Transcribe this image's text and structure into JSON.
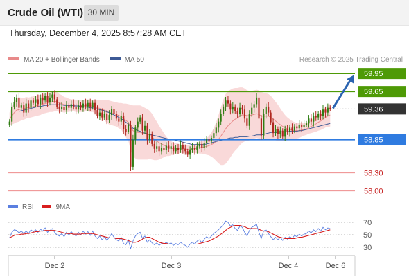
{
  "header": {
    "instrument": "Crude Oil (WTI)",
    "timeframe": "30 MIN",
    "datetime": "Thursday, December 4, 2025 8:57:28 AM CET"
  },
  "legend": {
    "bollinger_label": "MA 20 + Bollinger Bands",
    "ma50_label": "MA 50",
    "credit": "Research © 2025 Trading Central"
  },
  "colors": {
    "up_candle": "#2e7d12",
    "down_candle": "#b0271f",
    "bollinger_band": "#f8cfcf",
    "ma20": "#e88a8a",
    "ma50": "#3d5a96",
    "resistance": "#4e9a06",
    "support": "#2f7be0",
    "support2": "#ee8b8b",
    "last_price": "#333333",
    "rsi": "#5b7fe0",
    "rsi_ma": "#d81e1e",
    "arrow": "#2a63b0"
  },
  "chart_data": [
    {
      "type": "candlestick",
      "y_range": [
        57.95,
        60.02
      ],
      "x_labels": [
        "Dec 2",
        "Dec 3",
        "Dec 4",
        "Dec 6"
      ],
      "levels": [
        {
          "label": "59.95",
          "value": 59.95,
          "kind": "resistance"
        },
        {
          "label": "59.65",
          "value": 59.65,
          "kind": "resistance"
        },
        {
          "label": "59.36",
          "value": 59.36,
          "kind": "last"
        },
        {
          "label": "58.85",
          "value": 58.85,
          "kind": "support"
        },
        {
          "label": "58.30",
          "value": 58.3,
          "kind": "support2"
        },
        {
          "label": "58.00",
          "value": 58.0,
          "kind": "support2"
        }
      ],
      "arrow": {
        "from": 59.36,
        "to": 59.95
      },
      "close": [
        59.15,
        59.4,
        59.48,
        59.55,
        59.38,
        59.42,
        59.3,
        59.45,
        59.38,
        59.5,
        59.46,
        59.52,
        59.44,
        59.55,
        59.5,
        59.58,
        59.47,
        59.55,
        59.6,
        59.52,
        59.4,
        59.36,
        59.4,
        59.34,
        59.42,
        59.38,
        59.44,
        59.4,
        59.35,
        59.43,
        59.38,
        59.45,
        59.4,
        59.46,
        59.39,
        59.46,
        59.34,
        59.25,
        59.3,
        59.22,
        59.28,
        59.18,
        59.26,
        59.36,
        59.28,
        59.2,
        59.15,
        59.25,
        59.02,
        58.98,
        59.1,
        58.4,
        58.85,
        59.05,
        59.15,
        59.22,
        59.0,
        59.08,
        58.85,
        58.95,
        58.78,
        58.7,
        58.74,
        58.66,
        58.72,
        58.68,
        58.75,
        58.7,
        58.74,
        58.66,
        58.72,
        58.68,
        58.76,
        58.7,
        58.66,
        58.6,
        58.68,
        58.72,
        58.68,
        58.74,
        58.78,
        58.72,
        58.8,
        58.86,
        58.82,
        58.88,
        58.96,
        59.05,
        59.15,
        59.28,
        59.4,
        59.5,
        59.45,
        59.35,
        59.4,
        59.32,
        59.28,
        59.38,
        59.35,
        59.2,
        59.08,
        59.28,
        59.38,
        59.44,
        59.55,
        59.2,
        58.92,
        59.28,
        59.4,
        59.3,
        59.14,
        58.96,
        59.02,
        58.94,
        59.0,
        58.9,
        59.02,
        58.98,
        59.05,
        59.0,
        59.07,
        59.04,
        59.1,
        59.06,
        59.1,
        59.12,
        59.2,
        59.15,
        59.25,
        59.22,
        59.28,
        59.24,
        59.35,
        59.3,
        59.38,
        59.36
      ],
      "ma20": [
        59.2,
        59.24,
        59.3,
        59.34,
        59.35,
        59.36,
        59.36,
        59.38,
        59.38,
        59.39,
        59.4,
        59.41,
        59.42,
        59.43,
        59.44,
        59.45,
        59.46,
        59.47,
        59.48,
        59.49,
        59.48,
        59.46,
        59.45,
        59.43,
        59.43,
        59.42,
        59.42,
        59.42,
        59.41,
        59.41,
        59.41,
        59.41,
        59.42,
        59.42,
        59.41,
        59.41,
        59.4,
        59.38,
        59.37,
        59.35,
        59.34,
        59.32,
        59.3,
        59.29,
        59.28,
        59.27,
        59.25,
        59.24,
        59.2,
        59.17,
        59.14,
        59.05,
        59.0,
        58.98,
        58.97,
        58.97,
        58.96,
        58.95,
        58.94,
        58.93,
        58.9,
        58.86,
        58.83,
        58.8,
        58.78,
        58.76,
        58.74,
        58.72,
        58.71,
        58.7,
        58.7,
        58.7,
        58.7,
        58.7,
        58.7,
        58.69,
        58.69,
        58.7,
        58.7,
        58.71,
        58.72,
        58.72,
        58.73,
        58.74,
        58.75,
        58.77,
        58.79,
        58.82,
        58.86,
        58.91,
        58.97,
        59.03,
        59.08,
        59.12,
        59.16,
        59.19,
        59.21,
        59.24,
        59.26,
        59.26,
        59.25,
        59.25,
        59.26,
        59.27,
        59.28,
        59.27,
        59.24,
        59.24,
        59.24,
        59.24,
        59.22,
        59.19,
        59.16,
        59.13,
        59.1,
        59.07,
        59.05,
        59.03,
        59.02,
        59.01,
        59.0,
        59.0,
        59.0,
        59.01,
        59.02,
        59.03,
        59.05,
        59.07,
        59.09,
        59.11,
        59.14,
        59.16,
        59.19,
        59.22,
        59.24,
        59.26
      ],
      "bollinger_halfwidth": [
        0.1,
        0.14,
        0.18,
        0.2,
        0.2,
        0.19,
        0.18,
        0.18,
        0.17,
        0.17,
        0.17,
        0.17,
        0.17,
        0.17,
        0.16,
        0.16,
        0.16,
        0.16,
        0.17,
        0.17,
        0.16,
        0.15,
        0.14,
        0.13,
        0.12,
        0.11,
        0.1,
        0.1,
        0.1,
        0.1,
        0.1,
        0.1,
        0.1,
        0.1,
        0.1,
        0.1,
        0.11,
        0.13,
        0.14,
        0.16,
        0.17,
        0.19,
        0.2,
        0.2,
        0.2,
        0.2,
        0.21,
        0.22,
        0.25,
        0.28,
        0.3,
        0.38,
        0.42,
        0.44,
        0.45,
        0.45,
        0.44,
        0.43,
        0.42,
        0.4,
        0.38,
        0.35,
        0.32,
        0.28,
        0.24,
        0.2,
        0.16,
        0.14,
        0.12,
        0.1,
        0.09,
        0.08,
        0.07,
        0.07,
        0.07,
        0.07,
        0.07,
        0.07,
        0.07,
        0.08,
        0.1,
        0.1,
        0.12,
        0.14,
        0.16,
        0.2,
        0.25,
        0.32,
        0.4,
        0.48,
        0.54,
        0.58,
        0.58,
        0.56,
        0.54,
        0.52,
        0.5,
        0.48,
        0.46,
        0.44,
        0.42,
        0.41,
        0.4,
        0.4,
        0.4,
        0.4,
        0.4,
        0.39,
        0.38,
        0.37,
        0.36,
        0.34,
        0.32,
        0.3,
        0.27,
        0.24,
        0.21,
        0.19,
        0.17,
        0.15,
        0.14,
        0.13,
        0.12,
        0.11,
        0.1,
        0.1,
        0.1,
        0.11,
        0.12,
        0.13,
        0.14,
        0.15,
        0.16,
        0.17,
        0.18,
        0.19
      ],
      "ma50": [
        null,
        null,
        null,
        null,
        59.32,
        59.33,
        59.34,
        59.35,
        59.36,
        59.37,
        59.38,
        59.39,
        59.4,
        59.4,
        59.41,
        59.42,
        59.42,
        59.43,
        59.43,
        59.43,
        59.43,
        59.43,
        59.43,
        59.42,
        59.42,
        59.42,
        59.42,
        59.41,
        59.41,
        59.41,
        59.4,
        59.4,
        59.39,
        59.39,
        59.38,
        59.38,
        59.37,
        59.36,
        59.35,
        59.34,
        59.33,
        59.31,
        59.3,
        59.28,
        59.26,
        59.24,
        59.22,
        59.2,
        59.17,
        59.14,
        59.11,
        59.07,
        59.04,
        59.02,
        59.0,
        58.99,
        58.97,
        58.96,
        58.95,
        58.94,
        58.93,
        58.92,
        58.91,
        58.9,
        58.89,
        58.88,
        58.87,
        58.86,
        58.86,
        58.85,
        58.84,
        58.83,
        58.82,
        58.81,
        58.8,
        58.79,
        58.78,
        58.77,
        58.77,
        58.77,
        58.77,
        58.77,
        58.77,
        58.78,
        58.79,
        58.8,
        58.81,
        58.82,
        58.83,
        58.84,
        58.85,
        58.86,
        58.87,
        58.88,
        58.88,
        58.89,
        58.89,
        58.9,
        58.9,
        58.9,
        58.9,
        58.91,
        58.91,
        58.92,
        58.93,
        58.93,
        58.93,
        58.94,
        58.95,
        58.96,
        58.97,
        58.97,
        58.97,
        58.97,
        58.98,
        58.98,
        58.98,
        58.98,
        58.99,
        58.99,
        58.99,
        58.99,
        59.0,
        59.0,
        59.01,
        59.02,
        59.03,
        59.04,
        59.05,
        59.06,
        59.07,
        59.08,
        59.09,
        59.1,
        59.11,
        59.12
      ]
    },
    {
      "type": "line",
      "name": "RSI",
      "y_range": [
        20,
        80
      ],
      "y_ticks": [
        "70",
        "50",
        "30"
      ],
      "rsi": [
        45,
        54,
        58,
        57,
        53,
        56,
        52,
        56,
        52,
        58,
        55,
        58,
        54,
        59,
        56,
        61,
        54,
        57,
        60,
        54,
        50,
        48,
        52,
        47,
        54,
        50,
        55,
        51,
        48,
        54,
        50,
        56,
        51,
        55,
        49,
        56,
        48,
        44,
        48,
        42,
        47,
        41,
        46,
        52,
        46,
        42,
        40,
        46,
        36,
        34,
        42,
        28,
        40,
        48,
        52,
        54,
        44,
        48,
        38,
        42,
        37,
        34,
        37,
        33,
        36,
        35,
        38,
        35,
        37,
        33,
        36,
        34,
        38,
        35,
        33,
        30,
        35,
        38,
        35,
        40,
        42,
        37,
        43,
        47,
        44,
        48,
        52,
        55,
        58,
        62,
        66,
        72,
        70,
        64,
        66,
        60,
        57,
        64,
        62,
        54,
        48,
        57,
        62,
        64,
        67,
        54,
        44,
        56,
        58,
        52,
        47,
        42,
        46,
        42,
        46,
        41,
        46,
        43,
        47,
        44,
        49,
        47,
        51,
        48,
        51,
        52,
        56,
        53,
        58,
        55,
        60,
        56,
        62,
        58,
        61,
        60
      ],
      "ma9": [
        45,
        47,
        49,
        50,
        50,
        51,
        51,
        52,
        52,
        53,
        54,
        55,
        55,
        56,
        56,
        57,
        57,
        57,
        57,
        57,
        56,
        55,
        54,
        53,
        52,
        52,
        52,
        51,
        51,
        51,
        51,
        52,
        52,
        52,
        52,
        52,
        51,
        50,
        49,
        48,
        47,
        46,
        45,
        45,
        45,
        44,
        44,
        44,
        43,
        42,
        41,
        39,
        38,
        38,
        39,
        41,
        43,
        45,
        46,
        46,
        44,
        42,
        40,
        38,
        37,
        36,
        36,
        35,
        35,
        35,
        35,
        35,
        35,
        35,
        35,
        35,
        35,
        35,
        35,
        35,
        36,
        37,
        38,
        39,
        40,
        42,
        44,
        46,
        48,
        51,
        54,
        57,
        60,
        62,
        64,
        65,
        65,
        65,
        64,
        63,
        61,
        60,
        60,
        60,
        60,
        59,
        57,
        56,
        56,
        55,
        53,
        51,
        49,
        47,
        46,
        45,
        44,
        44,
        44,
        44,
        44,
        45,
        46,
        46,
        47,
        48,
        49,
        50,
        51,
        52,
        53,
        54,
        55,
        56,
        57,
        58
      ]
    }
  ]
}
